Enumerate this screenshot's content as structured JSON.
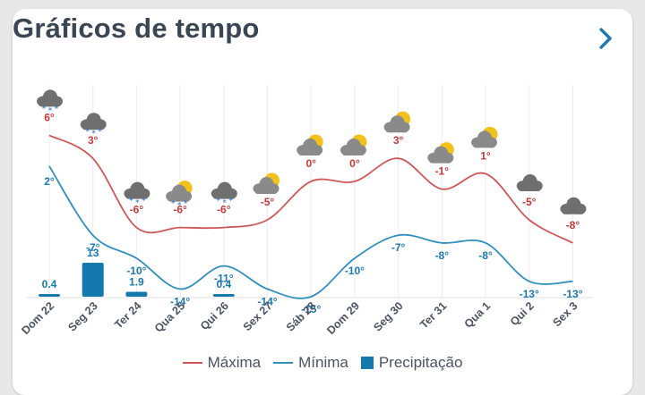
{
  "header": {
    "title": "Gráficos de tempo",
    "next_icon": "chevron-right-icon"
  },
  "colors": {
    "max": "#d05757",
    "min": "#2f8fbf",
    "precip": "#1679ad",
    "max_label": "#c73a3a",
    "min_label": "#1f78b0",
    "accent": "#1f78b0"
  },
  "legend": {
    "max_label": "Máxima",
    "min_label": "Mínima",
    "precip_label": "Precipitação"
  },
  "chart_data": {
    "type": "line",
    "categories": [
      "Dom 22",
      "Seg 23",
      "Ter 24",
      "Qua 25",
      "Qui 26",
      "Sex 27",
      "Sáb 28",
      "Dom 29",
      "Seg 30",
      "Ter 31",
      "Qua 1",
      "Qui 2",
      "Sex 3"
    ],
    "icons": [
      "snow-cloud-icon",
      "snow-cloud-icon",
      "snow-cloud-icon",
      "snow-sun-cloud-icon",
      "snow-cloud-icon",
      "sun-cloud-icon",
      "sun-cloud-icon",
      "sun-cloud-icon",
      "sun-cloud-icon",
      "sun-cloud-icon",
      "sun-cloud-icon",
      "cloud-icon",
      "cloud-icon"
    ],
    "series": [
      {
        "name": "Máxima",
        "values": [
          6,
          3,
          -6,
          -6,
          -6,
          -5,
          0,
          0,
          3,
          -1,
          1,
          -5,
          -8
        ],
        "labels": [
          "6°",
          "3°",
          "-6°",
          "-6°",
          "-6°",
          "-5°",
          "0°",
          "0°",
          "3°",
          "-1°",
          "1°",
          "-5°",
          "-8°"
        ]
      },
      {
        "name": "Mínima",
        "values": [
          2,
          -7,
          -10,
          -14,
          -11,
          -14,
          -15,
          -10,
          -7,
          -8,
          -8,
          -13,
          -13
        ],
        "labels": [
          "2°",
          "-7°",
          "-10°",
          "-14°",
          "-11°",
          "-14°",
          "-15°",
          "-10°",
          "-7°",
          "-8°",
          "-8°",
          "-13°",
          "-13°"
        ]
      }
    ],
    "precipitation": {
      "name": "Precipitação",
      "values": [
        0.4,
        13,
        1.9,
        0,
        0.4,
        0,
        0,
        0,
        0,
        0,
        0,
        0,
        0
      ],
      "labels": [
        "0.4",
        "13",
        "1.9",
        "",
        "0.4",
        "",
        "",
        "",
        "",
        "",
        "",
        "",
        ""
      ]
    },
    "grid": true,
    "legend_position": "bottom"
  }
}
